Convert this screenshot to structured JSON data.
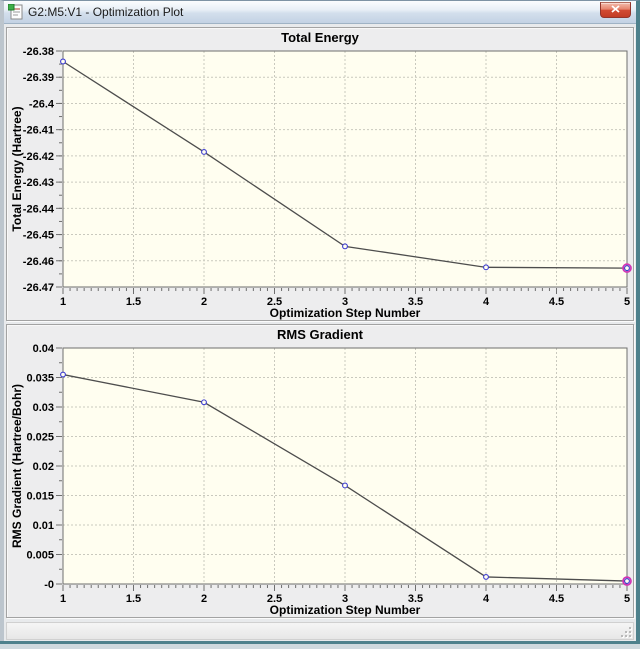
{
  "window": {
    "title": "G2:M5:V1 - Optimization Plot",
    "icon": "molecule-document-icon",
    "close_glyph": "x"
  },
  "status_bar": {
    "text": ""
  },
  "colors": {
    "plot_bg": "#fffef0",
    "grid": "#c9c9be",
    "axis": "#6e6e6e",
    "line": "#4d4d4d",
    "marker": "#3c3cd0",
    "highlight": "#d233b5",
    "frame_accent": "#4e818c",
    "titlebar_top": "#fbfdfe",
    "titlebar_bottom": "#c3d2e4"
  },
  "chart_data": [
    {
      "type": "line",
      "title": "Total Energy",
      "xlabel": "Optimization Step Number",
      "ylabel": "Total Energy (Hartree)",
      "x": [
        1,
        2,
        3,
        4,
        5
      ],
      "y": [
        -26.384,
        -26.4185,
        -26.4545,
        -26.4625,
        -26.4628
      ],
      "xlim": [
        1,
        5
      ],
      "ylim": [
        -26.47,
        -26.38
      ],
      "x_tick_values": [
        1,
        1.5,
        2,
        2.5,
        3,
        3.5,
        4,
        4.5,
        5
      ],
      "x_tick_labels": [
        "1",
        "1.5",
        "2",
        "2.5",
        "3",
        "3.5",
        "4",
        "4.5",
        "5"
      ],
      "x_minor_step": 0.05,
      "y_tick_values": [
        -26.38,
        -26.39,
        -26.4,
        -26.41,
        -26.42,
        -26.43,
        -26.44,
        -26.45,
        -26.46,
        -26.47
      ],
      "y_tick_labels": [
        "-26.38",
        "-26.39",
        "-26.4",
        "-26.41",
        "-26.42",
        "-26.43",
        "-26.44",
        "-26.45",
        "-26.46",
        "-26.47"
      ],
      "y_minor_step": 0.005,
      "grid": true,
      "legend": "none",
      "last_point_highlighted": true
    },
    {
      "type": "line",
      "title": "RMS Gradient",
      "xlabel": "Optimization Step Number",
      "ylabel": "RMS Gradient (Hartree/Bohr)",
      "x": [
        1,
        2,
        3,
        4,
        5
      ],
      "y": [
        0.0355,
        0.0308,
        0.0167,
        0.0012,
        0.0005
      ],
      "xlim": [
        1,
        5
      ],
      "ylim": [
        0,
        0.04
      ],
      "x_tick_values": [
        1,
        1.5,
        2,
        2.5,
        3,
        3.5,
        4,
        4.5,
        5
      ],
      "x_tick_labels": [
        "1",
        "1.5",
        "2",
        "2.5",
        "3",
        "3.5",
        "4",
        "4.5",
        "5"
      ],
      "x_minor_step": 0.05,
      "y_tick_values": [
        0.04,
        0.035,
        0.03,
        0.025,
        0.02,
        0.015,
        0.01,
        0.005,
        0
      ],
      "y_tick_labels": [
        "0.04",
        "0.035",
        "0.03",
        "0.025",
        "0.02",
        "0.015",
        "0.01",
        "0.005",
        "-0"
      ],
      "y_minor_step": 0.0025,
      "grid": true,
      "legend": "none",
      "last_point_highlighted": true
    }
  ]
}
